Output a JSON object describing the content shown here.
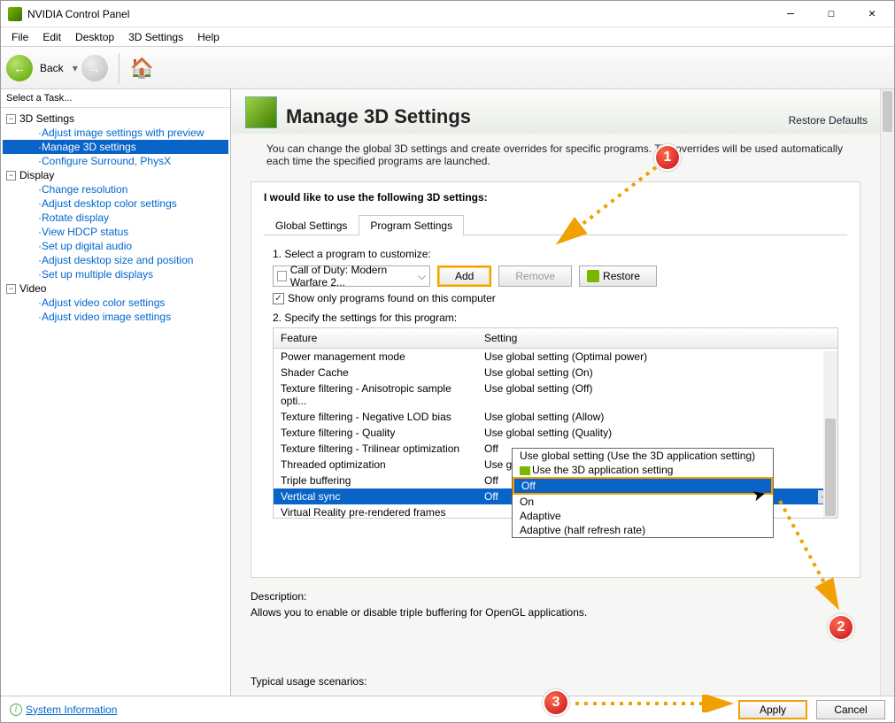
{
  "window": {
    "title": "NVIDIA Control Panel"
  },
  "menubar": [
    "File",
    "Edit",
    "Desktop",
    "3D Settings",
    "Help"
  ],
  "toolbar": {
    "back": "Back"
  },
  "tree": {
    "header": "Select a Task...",
    "groups": [
      {
        "label": "3D Settings",
        "items": [
          "Adjust image settings with preview",
          "Manage 3D settings",
          "Configure Surround, PhysX"
        ],
        "selected": 1
      },
      {
        "label": "Display",
        "items": [
          "Change resolution",
          "Adjust desktop color settings",
          "Rotate display",
          "View HDCP status",
          "Set up digital audio",
          "Adjust desktop size and position",
          "Set up multiple displays"
        ]
      },
      {
        "label": "Video",
        "items": [
          "Adjust video color settings",
          "Adjust video image settings"
        ]
      }
    ]
  },
  "page": {
    "title": "Manage 3D Settings",
    "restore_defaults": "Restore Defaults",
    "intro": "You can change the global 3D settings and create overrides for specific programs. The overrides will be used automatically each time the specified programs are launched.",
    "lead": "I would like to use the following 3D settings:",
    "tabs": {
      "global": "Global Settings",
      "program": "Program Settings"
    },
    "step1": "1. Select a program to customize:",
    "program": "Call of Duty: Modern Warfare 2...",
    "add_btn": "Add",
    "remove_btn": "Remove",
    "restore_btn": "Restore",
    "cb_label": "Show only programs found on this computer",
    "step2": "2. Specify the settings for this program:",
    "cols": {
      "feature": "Feature",
      "setting": "Setting"
    },
    "rows": [
      [
        "Power management mode",
        "Use global setting (Optimal power)"
      ],
      [
        "Shader Cache",
        "Use global setting (On)"
      ],
      [
        "Texture filtering - Anisotropic sample opti...",
        "Use global setting (Off)"
      ],
      [
        "Texture filtering - Negative LOD bias",
        "Use global setting (Allow)"
      ],
      [
        "Texture filtering - Quality",
        "Use global setting (Quality)"
      ],
      [
        "Texture filtering - Trilinear optimization",
        "Off"
      ],
      [
        "Threaded optimization",
        "Use global setting (Auto)"
      ],
      [
        "Triple buffering",
        "Off"
      ],
      [
        "Vertical sync",
        "Off"
      ],
      [
        "Virtual Reality pre-rendered frames",
        ""
      ]
    ],
    "selected_row": 8,
    "dropdown": [
      "Use global setting (Use the 3D application setting)",
      "Use the 3D application setting",
      "Off",
      "On",
      "Adaptive",
      "Adaptive (half refresh rate)"
    ],
    "dropdown_selected": 2,
    "desc_label": "Description:",
    "desc_text": "Allows you to enable or disable triple buffering for OpenGL applications.",
    "typical": "Typical usage scenarios:"
  },
  "status": {
    "sysinfo": "System Information",
    "apply": "Apply",
    "cancel": "Cancel"
  },
  "badges": {
    "b1": "1",
    "b2": "2",
    "b3": "3"
  },
  "annot": {
    "highlight_color": "#f0a000",
    "badge_fill": "#c81020",
    "arrow_color": "#f0a000",
    "sel_bg": "#0a63c7"
  }
}
